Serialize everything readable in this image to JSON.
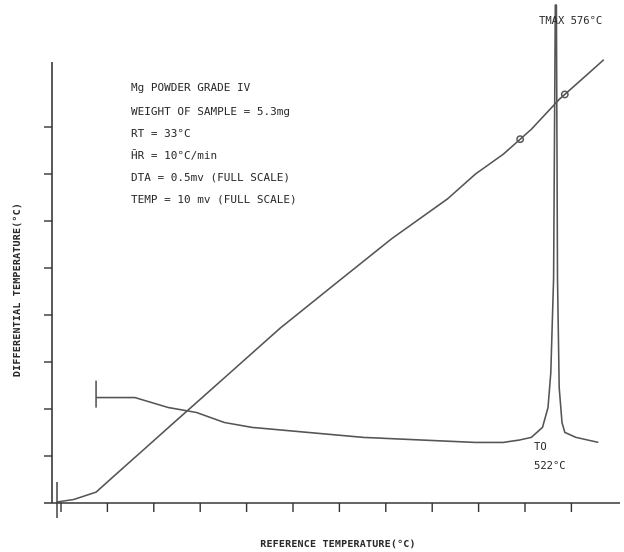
{
  "chart_data": {
    "type": "line",
    "title": "",
    "xlabel": "REFERENCE TEMPERATURE(°C)",
    "ylabel": "DIFFERENTIAL TEMPERATURE(°C)",
    "grid": false,
    "legend": "none",
    "info_lines": [
      "Mg POWDER GRADE IV",
      "WEIGHT OF SAMPLE = 5.3mg",
      "RT = 33°C",
      "H̄R = 10°C/min",
      "DTA = 0.5mv (FULL SCALE)",
      "TEMP = 10 mv (FULL SCALE)"
    ],
    "annotations": {
      "tmax": "TMAX 576°C",
      "to_label": "TO",
      "to_value": "522°C"
    },
    "line_color": "#555555",
    "axis_color": "#333333",
    "series": [
      {
        "role": "temperature-trace",
        "x": [
          0,
          0.03,
          0.07,
          0.1,
          0.15,
          0.2,
          0.3,
          0.4,
          0.5,
          0.6,
          0.7,
          0.75,
          0.8,
          0.85,
          0.9,
          0.95,
          0.98
        ],
        "y": [
          0,
          0.005,
          0.02,
          0.05,
          0.1,
          0.15,
          0.25,
          0.35,
          0.44,
          0.53,
          0.61,
          0.66,
          0.7,
          0.75,
          0.81,
          0.86,
          0.89
        ],
        "markers_at_x": [
          0.83,
          0.91
        ]
      },
      {
        "role": "dta-curve",
        "x": [
          0.07,
          0.1,
          0.14,
          0.2,
          0.25,
          0.3,
          0.35,
          0.45,
          0.55,
          0.65,
          0.75,
          0.8,
          0.83,
          0.85,
          0.87,
          0.88,
          0.885,
          0.89,
          0.893,
          0.895,
          0.897,
          0.9,
          0.905,
          0.91,
          0.93,
          0.97
        ],
        "y": [
          0.21,
          0.21,
          0.21,
          0.19,
          0.18,
          0.16,
          0.15,
          0.14,
          0.13,
          0.125,
          0.12,
          0.12,
          0.125,
          0.13,
          0.15,
          0.19,
          0.26,
          0.45,
          1.0,
          1.0,
          0.45,
          0.23,
          0.16,
          0.14,
          0.13,
          0.12
        ]
      }
    ]
  }
}
